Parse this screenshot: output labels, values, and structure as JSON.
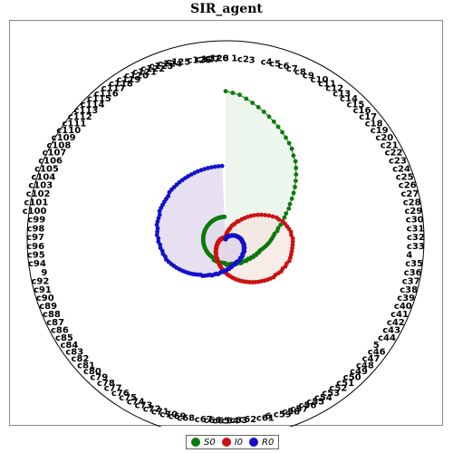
{
  "chart_data": {
    "type": "radial-line",
    "title": "SIR_agent",
    "categories": [
      "0",
      "1",
      "c2",
      "3",
      "c4",
      "c5",
      "c6",
      "c7",
      "c8",
      "c9",
      "c10",
      "c11",
      "c12",
      "c13",
      "c14",
      "c15",
      "c16",
      "c17",
      "c18",
      "c19",
      "c20",
      "c21",
      "c22",
      "c23",
      "c24",
      "c25",
      "c26",
      "c27",
      "c28",
      "c29",
      "c30",
      "c31",
      "c32",
      "c33",
      "4",
      "c35",
      "c36",
      "c37",
      "c38",
      "c39",
      "c40",
      "c41",
      "c42",
      "c43",
      "c44",
      "5",
      "c46",
      "c47",
      "c48",
      "c49",
      "c50",
      "c51",
      "c52",
      "c53",
      "c54",
      "c55",
      "c56",
      "c57",
      "c58",
      "c59",
      "6",
      "c61",
      "c62",
      "c63",
      "c64",
      "c65",
      "c66",
      "c67",
      "c68",
      "c69",
      "c70",
      "c71",
      "c72",
      "c73",
      "c74",
      "c75",
      "c76",
      "c77",
      "c78",
      "c79",
      "c80",
      "c81",
      "c82",
      "c83",
      "c84",
      "c85",
      "c86",
      "c87",
      "c88",
      "c89",
      "c90",
      "c91",
      "c92",
      "9",
      "c94",
      "c95",
      "c96",
      "c97",
      "c98",
      "c99",
      "c100",
      "c101",
      "c102",
      "c103",
      "c104",
      "c105",
      "c106",
      "c107",
      "c108",
      "c109",
      "c110",
      "c111",
      "c112",
      "c113",
      "c114",
      "c115",
      "c116",
      "c117",
      "c118",
      "c119",
      "c120",
      "c121",
      "c122",
      "c123",
      "c124",
      "c125",
      "c126",
      "c127",
      "c128"
    ],
    "series": [
      {
        "name": "S0",
        "color": "#0a7a0a",
        "fill": "#e3f1e3",
        "values": [
          0.99,
          0.98,
          0.97,
          0.95,
          0.93,
          0.91,
          0.89,
          0.87,
          0.85,
          0.83,
          0.81,
          0.79,
          0.77,
          0.75,
          0.72,
          0.7,
          0.67,
          0.64,
          0.61,
          0.58,
          0.55,
          0.52,
          0.49,
          0.47,
          0.44,
          0.42,
          0.4,
          0.38,
          0.36,
          0.35,
          0.33,
          0.32,
          0.31,
          0.3,
          0.29,
          0.28,
          0.27,
          0.26,
          0.25,
          0.24,
          0.24,
          0.23,
          0.23,
          0.22,
          0.22,
          0.21,
          0.21,
          0.2,
          0.2,
          0.2,
          0.19,
          0.19,
          0.19,
          0.19,
          0.18,
          0.18,
          0.18,
          0.18,
          0.18,
          0.17,
          0.17,
          0.17,
          0.17,
          0.17,
          0.17,
          0.16,
          0.16,
          0.16,
          0.16,
          0.16,
          0.16,
          0.16,
          0.16,
          0.16,
          0.16,
          0.16,
          0.15,
          0.15,
          0.15,
          0.15,
          0.15,
          0.15,
          0.15,
          0.15,
          0.15,
          0.15,
          0.15,
          0.15,
          0.15,
          0.15,
          0.15,
          0.15,
          0.15,
          0.15,
          0.15,
          0.15,
          0.15,
          0.15,
          0.15,
          0.15,
          0.15,
          0.15,
          0.15,
          0.15,
          0.15,
          0.15,
          0.15,
          0.15,
          0.15,
          0.15,
          0.15,
          0.15,
          0.15,
          0.15,
          0.15,
          0.15,
          0.15,
          0.15,
          0.15,
          0.15,
          0.15,
          0.15,
          0.15,
          0.15,
          0.15,
          0.15,
          0.15,
          0.15,
          0.15
        ]
      },
      {
        "name": "I0",
        "color": "#cc1111",
        "fill": "#f4e2dc",
        "values": [
          0.01,
          0.01,
          0.02,
          0.03,
          0.04,
          0.05,
          0.06,
          0.07,
          0.08,
          0.1,
          0.11,
          0.12,
          0.14,
          0.15,
          0.17,
          0.19,
          0.21,
          0.23,
          0.25,
          0.27,
          0.29,
          0.31,
          0.33,
          0.35,
          0.37,
          0.38,
          0.4,
          0.41,
          0.42,
          0.43,
          0.44,
          0.44,
          0.45,
          0.45,
          0.45,
          0.45,
          0.45,
          0.45,
          0.45,
          0.45,
          0.44,
          0.44,
          0.43,
          0.43,
          0.42,
          0.41,
          0.41,
          0.4,
          0.39,
          0.38,
          0.37,
          0.36,
          0.35,
          0.34,
          0.33,
          0.32,
          0.31,
          0.3,
          0.29,
          0.28,
          0.27,
          0.26,
          0.25,
          0.24,
          0.23,
          0.22,
          0.21,
          0.2,
          0.19,
          0.18,
          0.17,
          0.16,
          0.15,
          0.14,
          0.14,
          0.13,
          0.12,
          0.11,
          0.11,
          0.1,
          0.09,
          0.09,
          0.08,
          0.08,
          0.07,
          0.07,
          0.06,
          0.06,
          0.06,
          0.05,
          0.05,
          0.05,
          0.04,
          0.04,
          0.04,
          0.04,
          0.03,
          0.03,
          0.03,
          0.03,
          0.03,
          0.02,
          0.02,
          0.02,
          0.02,
          0.02,
          0.02,
          0.02,
          0.02,
          0.01,
          0.01,
          0.01,
          0.01,
          0.01,
          0.01,
          0.01,
          0.01,
          0.01,
          0.01,
          0.01,
          0.01,
          0.01,
          0.01,
          0.01,
          0.01,
          0.01,
          0.01,
          0.01,
          0.01
        ]
      },
      {
        "name": "R0",
        "color": "#1111cc",
        "fill": "#d8d0ea",
        "values": [
          0.0,
          0.0,
          0.0,
          0.0,
          0.0,
          0.0,
          0.0,
          0.01,
          0.01,
          0.01,
          0.01,
          0.01,
          0.02,
          0.02,
          0.02,
          0.02,
          0.03,
          0.03,
          0.03,
          0.04,
          0.04,
          0.05,
          0.05,
          0.06,
          0.06,
          0.07,
          0.07,
          0.08,
          0.08,
          0.09,
          0.09,
          0.1,
          0.1,
          0.11,
          0.11,
          0.11,
          0.12,
          0.12,
          0.13,
          0.13,
          0.13,
          0.14,
          0.14,
          0.14,
          0.15,
          0.15,
          0.15,
          0.15,
          0.16,
          0.16,
          0.16,
          0.16,
          0.17,
          0.17,
          0.17,
          0.17,
          0.17,
          0.18,
          0.18,
          0.18,
          0.19,
          0.19,
          0.2,
          0.2,
          0.21,
          0.21,
          0.22,
          0.22,
          0.23,
          0.24,
          0.24,
          0.25,
          0.26,
          0.26,
          0.27,
          0.28,
          0.29,
          0.29,
          0.3,
          0.31,
          0.32,
          0.33,
          0.34,
          0.35,
          0.36,
          0.37,
          0.38,
          0.39,
          0.4,
          0.41,
          0.42,
          0.42,
          0.43,
          0.43,
          0.44,
          0.44,
          0.45,
          0.45,
          0.46,
          0.46,
          0.46,
          0.47,
          0.47,
          0.47,
          0.47,
          0.48,
          0.48,
          0.48,
          0.48,
          0.48,
          0.48,
          0.49,
          0.49,
          0.49,
          0.49,
          0.49,
          0.49,
          0.49,
          0.49,
          0.49,
          0.49,
          0.49,
          0.49,
          0.49,
          0.49,
          0.49,
          0.49,
          0.49,
          0.49
        ]
      }
    ],
    "rlim": [
      0,
      1
    ],
    "grid": false,
    "legend_position": "bottom-center"
  }
}
